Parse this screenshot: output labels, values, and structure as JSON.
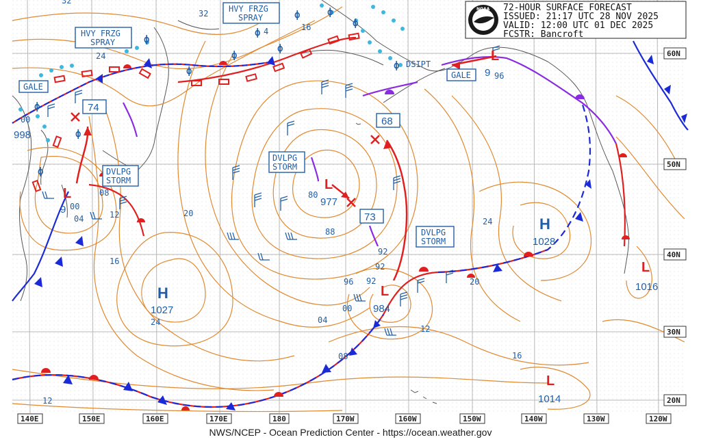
{
  "header": {
    "line1": "72-HOUR SURFACE FORECAST",
    "line2": "ISSUED: 21:17 UTC 28 NOV 2025",
    "line3": "VALID:  12:00 UTC 01 DEC 2025",
    "line4": "FCSTR:  Bancroft",
    "logo_text": "NOAA"
  },
  "footer": "NWS/NCEP - Ocean Prediction Center - https://ocean.weather.gov",
  "lon_labels": [
    "140E",
    "150E",
    "160E",
    "170E",
    "180",
    "170W",
    "160W",
    "150W",
    "140W",
    "130W",
    "120W"
  ],
  "lat_labels": [
    "60N",
    "50N",
    "40N",
    "30N",
    "20N"
  ],
  "pressure_centers": [
    {
      "type": "H",
      "value": "1027"
    },
    {
      "type": "H",
      "value": "1028"
    },
    {
      "type": "L",
      "value": "977"
    },
    {
      "type": "L",
      "value": "984"
    },
    {
      "type": "L",
      "value": "1016"
    },
    {
      "type": "L",
      "value": "1014"
    },
    {
      "type": "L",
      "value": "998"
    },
    {
      "type": "L",
      "value": "9"
    },
    {
      "type": "L",
      "value": "9"
    }
  ],
  "forecast_positions": [
    "74",
    "68",
    "73"
  ],
  "warning_boxes": [
    {
      "id": "hvy1",
      "lines": [
        "HVY FRZG",
        "SPRAY"
      ]
    },
    {
      "id": "hvy2",
      "lines": [
        "HVY FRZG",
        "SPRAY"
      ]
    },
    {
      "id": "gale1",
      "lines": [
        "GALE"
      ]
    },
    {
      "id": "gale2",
      "lines": [
        "GALE"
      ]
    },
    {
      "id": "dvlpg1",
      "lines": [
        "DVLPG",
        "STORM"
      ]
    },
    {
      "id": "dvlpg2",
      "lines": [
        "DVLPG",
        "STORM"
      ]
    },
    {
      "id": "dvlpg3",
      "lines": [
        "DVLPG",
        "STORM"
      ]
    }
  ],
  "dsipt_label": "DSIPT",
  "isobar_labels": [
    "32",
    "32",
    "16",
    "24",
    "4",
    "20",
    "16",
    "12",
    "08",
    "00",
    "04",
    "24",
    "04",
    "00",
    "08",
    "12",
    "96",
    "92",
    "92",
    "92",
    "88",
    "80",
    "20",
    "24",
    "16",
    "12",
    "96",
    "00"
  ],
  "colors": {
    "isobar": "#e0892f",
    "grid": "#b0b0b0",
    "coast": "#555555",
    "label_blue": "#1f5ea8",
    "warm_front": "#e02020",
    "cold_front": "#1a2ad6",
    "occluded": "#8a2be2",
    "ice": "#3db6e0"
  }
}
